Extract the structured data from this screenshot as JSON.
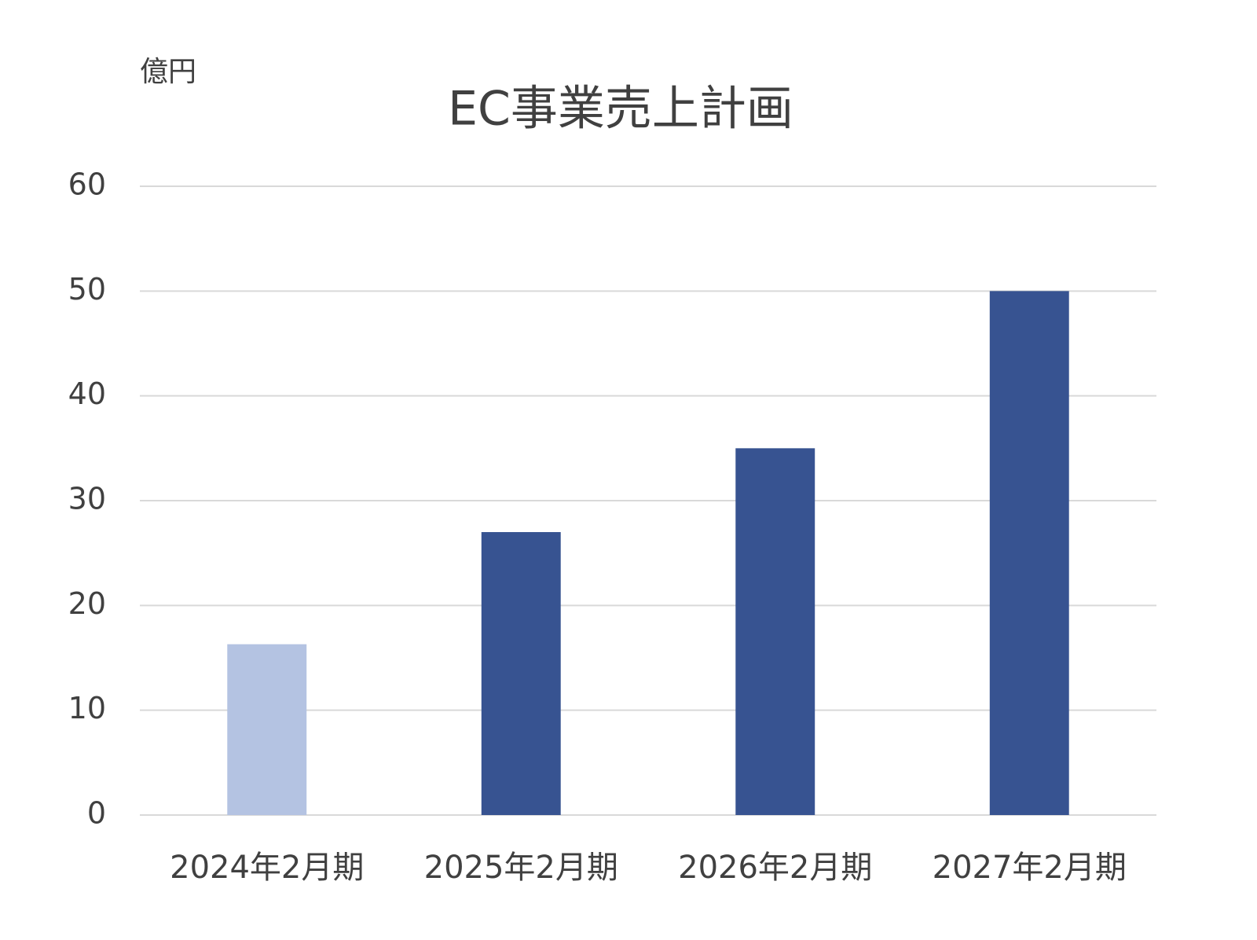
{
  "chart_data": {
    "type": "bar",
    "title": "EC事業売上計画",
    "unit_label": "億円",
    "categories": [
      "2024年2月期",
      "2025年2月期",
      "2026年2月期",
      "2027年2月期"
    ],
    "values": [
      16.3,
      27,
      35,
      50
    ],
    "colors": [
      "#b4c3e2",
      "#375391",
      "#375391",
      "#375391"
    ],
    "ylim": [
      0,
      60
    ],
    "yticks": [
      0,
      10,
      20,
      30,
      40,
      50,
      60
    ],
    "grid": true
  }
}
